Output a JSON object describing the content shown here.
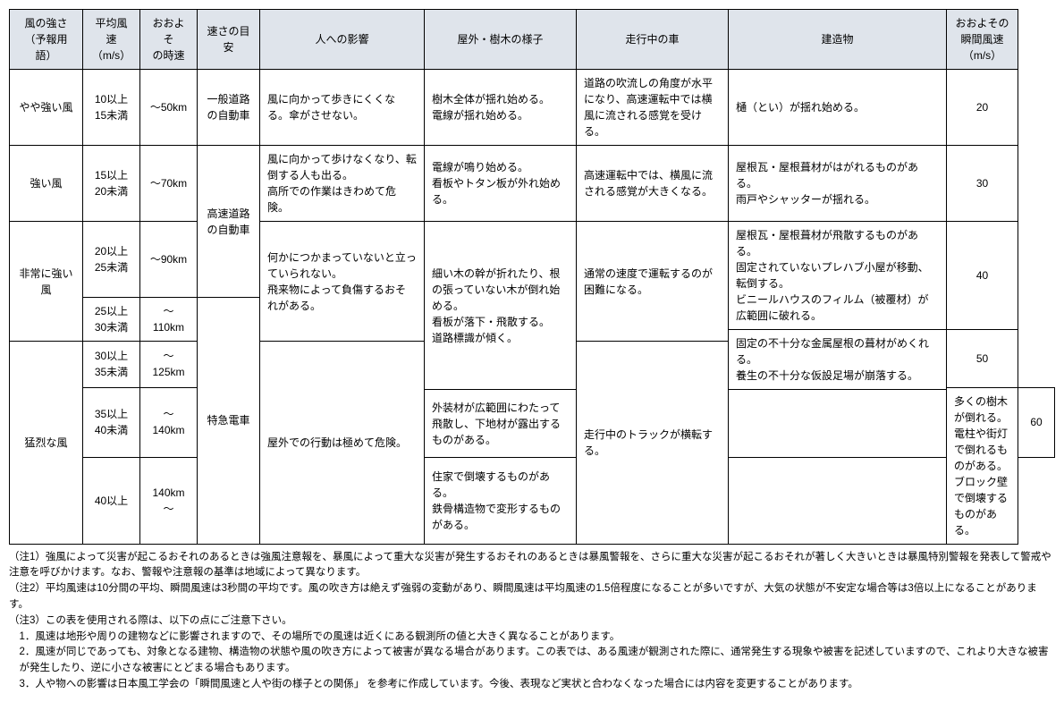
{
  "header": {
    "strength": "風の強さ\n（予報用語）",
    "avg_speed": "平均風速\n（m/s）",
    "kmh": "おおよそ\nの時速",
    "standard": "速さの目安",
    "human": "人への影響",
    "outdoor": "屋外・樹木の様子",
    "car": "走行中の車",
    "building": "建造物",
    "gust": "おおよその\n瞬間風速\n（m/s）"
  },
  "categories": {
    "c1": "やや強い風",
    "c2": "強い風",
    "c3": "非常に強い風",
    "c4": "猛烈な風"
  },
  "speeds": {
    "s1": "10以上\n15未満",
    "s2": "15以上\n20未満",
    "s3": "20以上\n25未満",
    "s4": "25以上\n30未満",
    "s5": "30以上\n35未満",
    "s6": "35以上\n40未満",
    "s7": "40以上"
  },
  "kmh": {
    "k1": "～50km",
    "k2": "～70km",
    "k3": "～90km",
    "k4": "～110km",
    "k5": "～125km",
    "k6": "～140km",
    "k7": "140km～"
  },
  "standard": {
    "st1": "一般道路\nの自動車",
    "st2": "高速道路\nの自動車",
    "st3": "特急電車"
  },
  "human": {
    "h1": "風に向かって歩きにくくなる。傘がさせない。",
    "h2": "風に向かって歩けなくなり、転倒する人も出る。\n高所での作業はきわめて危険。",
    "h3": "何かにつかまっていないと立っていられない。\n飛来物によって負傷するおそれがある。",
    "h4": "屋外での行動は極めて危険。"
  },
  "outdoor": {
    "o1": "樹木全体が揺れ始める。\n電線が揺れ始める。",
    "o2": "電線が鳴り始める。\n看板やトタン板が外れ始める。",
    "o3": "細い木の幹が折れたり、根の張っていない木が倒れ始める。\n看板が落下・飛散する。\n道路標識が傾く。",
    "o4": "多くの樹木が倒れる。\n電柱や街灯で倒れるものがある。\nブロック壁で倒壊するものがある。"
  },
  "car": {
    "ca1": "道路の吹流しの角度が水平になり、高速運転中では横風に流される感覚を受ける。",
    "ca2": "高速運転中では、横風に流される感覚が大きくなる。",
    "ca3": "通常の速度で運転するのが困難になる。",
    "ca4": "走行中のトラックが横転する。"
  },
  "building": {
    "b1": "樋（とい）が揺れ始める。",
    "b2": "屋根瓦・屋根葺材がはがれるものがある。\n雨戸やシャッターが揺れる。",
    "b3": "屋根瓦・屋根葺材が飛散するものがある。\n固定されていないプレハブ小屋が移動、転倒する。\nビニールハウスのフィルム（被覆材）が広範囲に破れる。",
    "b4": "固定の不十分な金属屋根の葺材がめくれる。\n養生の不十分な仮設足場が崩落する。",
    "b5": "外装材が広範囲にわたって飛散し、下地材が露出するものがある。",
    "b6": "住家で倒壊するものがある。\n鉄骨構造物で変形するものがある。"
  },
  "gust": {
    "g1": "20",
    "g2": "30",
    "g3": "40",
    "g4": "50",
    "g5": "60"
  },
  "notes": {
    "n1": "（注1）強風によって災害が起こるおそれのあるときは強風注意報を、暴風によって重大な災害が発生するおそれのあるときは暴風警報を、さらに重大な災害が起こるおそれが著しく大きいときは暴風特別警報を発表して警戒や注意を呼びかけます。なお、警報や注意報の基準は地域によって異なります。",
    "n2": "（注2）平均風速は10分間の平均、瞬間風速は3秒間の平均です。風の吹き方は絶えず強弱の変動があり、瞬間風速は平均風速の1.5倍程度になることが多いですが、大気の状態が不安定な場合等は3倍以上になることがあります。",
    "n3": "（注3）この表を使用される際は、以下の点にご注意下さい。",
    "n3_1": "1．風速は地形や周りの建物などに影響されますので、その場所での風速は近くにある観測所の値と大きく異なることがあります。",
    "n3_2": "2．風速が同じであっても、対象となる建物、構造物の状態や風の吹き方によって被害が異なる場合があります。この表では、ある風速が観測された際に、通常発生する現象や被害を記述していますので、これより大きな被害が発生したり、逆に小さな被害にとどまる場合もあります。",
    "n3_3": "3．人や物への影響は日本風工学会の「瞬間風速と人や街の様子との関係」 を参考に作成しています。今後、表現など実状と合わなくなった場合には内容を変更することがあります。"
  }
}
